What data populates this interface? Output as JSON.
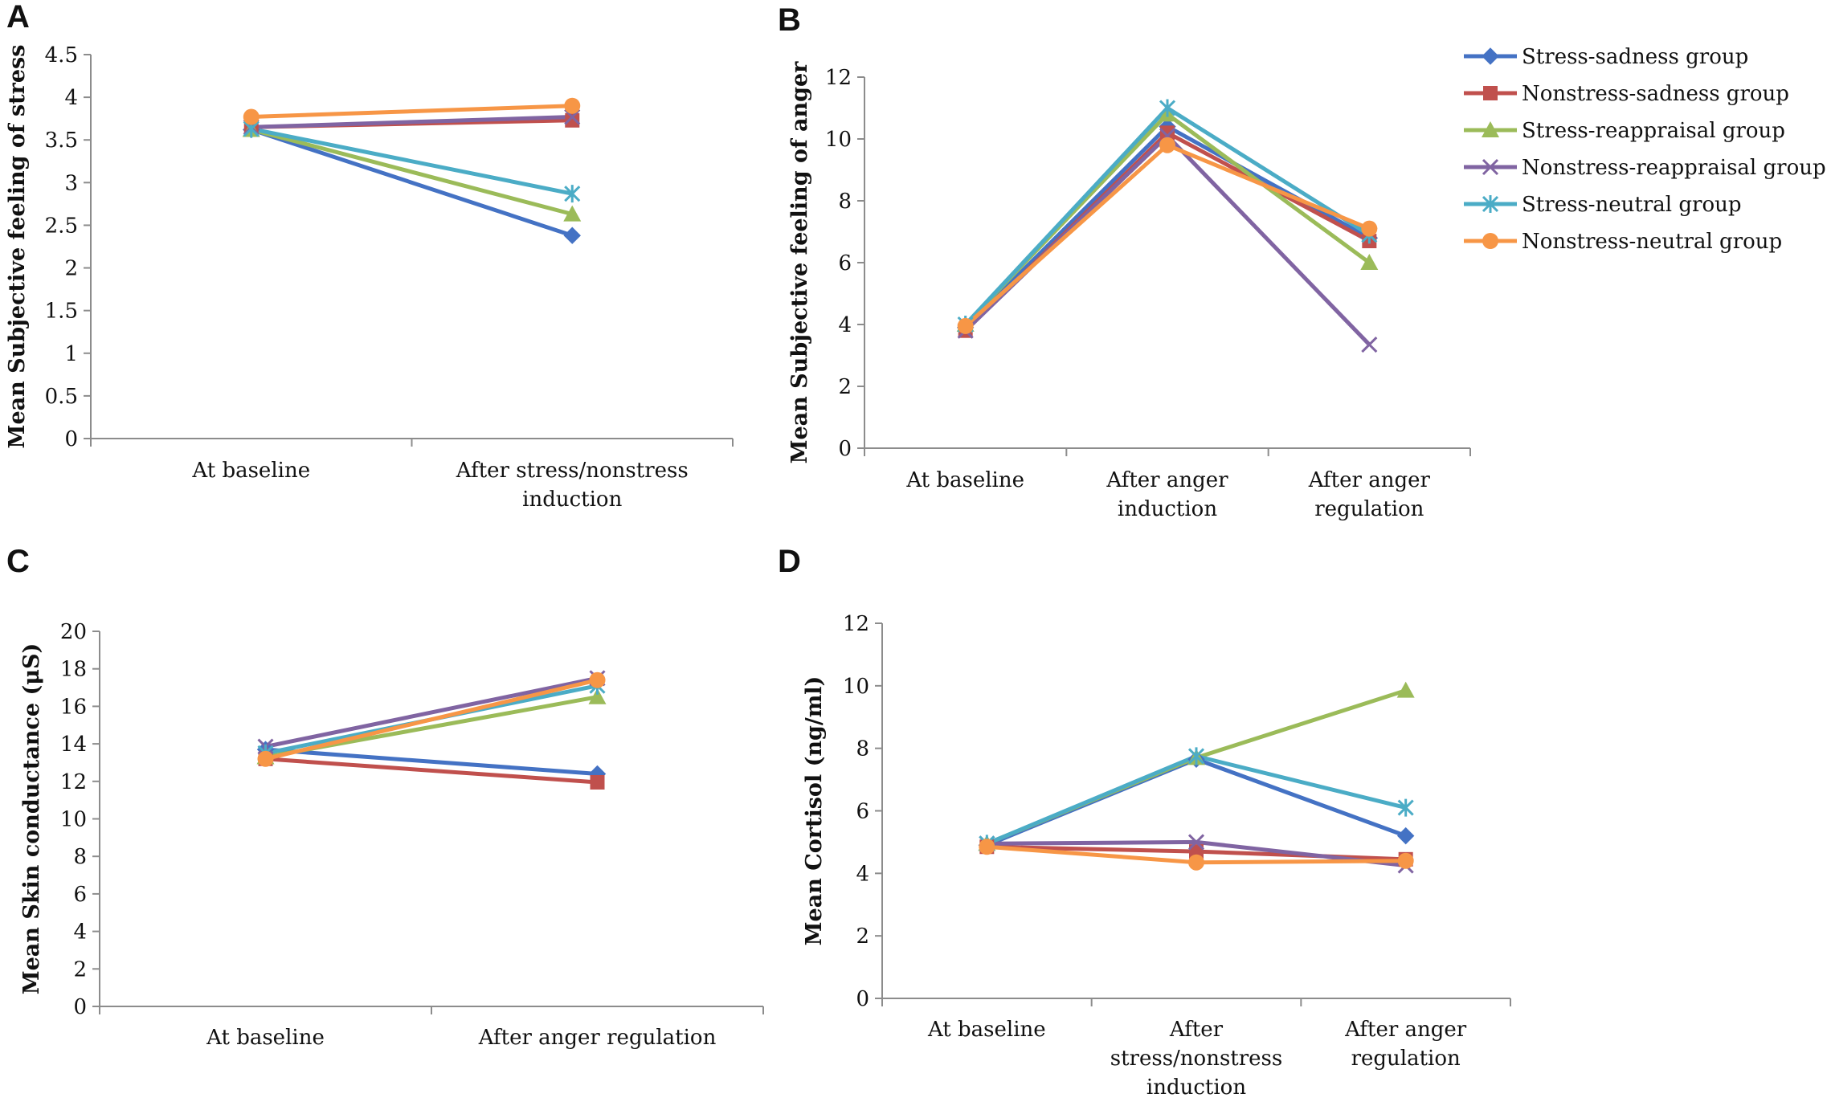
{
  "legend": [
    {
      "name": "Stress-sadness group",
      "color": "#4472C4",
      "marker": "diamond"
    },
    {
      "name": "Nonstress-sadness group",
      "color": "#C0504D",
      "marker": "square"
    },
    {
      "name": "Stress-reappraisal group",
      "color": "#9BBB59",
      "marker": "triangle"
    },
    {
      "name": "Nonstress-reappraisal group",
      "color": "#8064A2",
      "marker": "x"
    },
    {
      "name": "Stress-neutral group",
      "color": "#4BACC6",
      "marker": "star"
    },
    {
      "name": "Nonstress-neutral group",
      "color": "#F79646",
      "marker": "circle"
    }
  ],
  "chart_data": [
    {
      "panel": "A",
      "type": "line",
      "ylabel": "Mean Subjective feeling of stress",
      "ylim": [
        0,
        4.5
      ],
      "yticks": [
        "0",
        "0.5",
        "1",
        "1.5",
        "2",
        "2.5",
        "3",
        "3.5",
        "4",
        "4.5"
      ],
      "categories": [
        [
          "At baseline"
        ],
        [
          "After stress/nonstress",
          "induction"
        ]
      ],
      "series": [
        {
          "name": "Stress-sadness group",
          "values": [
            3.62,
            2.38
          ]
        },
        {
          "name": "Nonstress-sadness group",
          "values": [
            3.65,
            3.73
          ]
        },
        {
          "name": "Stress-reappraisal group",
          "values": [
            3.62,
            2.63
          ]
        },
        {
          "name": "Nonstress-reappraisal group",
          "values": [
            3.65,
            3.77
          ]
        },
        {
          "name": "Stress-neutral group",
          "values": [
            3.63,
            2.87
          ]
        },
        {
          "name": "Nonstress-neutral group",
          "values": [
            3.77,
            3.9
          ]
        }
      ]
    },
    {
      "panel": "B",
      "type": "line",
      "ylabel": "Mean Subjective feeling of anger",
      "ylim": [
        0,
        12
      ],
      "yticks": [
        "0",
        "2",
        "4",
        "6",
        "8",
        "10",
        "12"
      ],
      "categories": [
        [
          "At baseline"
        ],
        [
          "After anger",
          "induction"
        ],
        [
          "After anger",
          "regulation"
        ]
      ],
      "series": [
        {
          "name": "Stress-sadness group",
          "values": [
            3.9,
            10.4,
            6.8
          ]
        },
        {
          "name": "Nonstress-sadness group",
          "values": [
            3.8,
            10.2,
            6.7
          ]
        },
        {
          "name": "Stress-reappraisal group",
          "values": [
            4.0,
            10.8,
            6.0
          ]
        },
        {
          "name": "Nonstress-reappraisal group",
          "values": [
            3.8,
            10.1,
            3.35
          ]
        },
        {
          "name": "Stress-neutral group",
          "values": [
            4.0,
            11.0,
            6.9
          ]
        },
        {
          "name": "Nonstress-neutral group",
          "values": [
            3.95,
            9.8,
            7.1
          ]
        }
      ]
    },
    {
      "panel": "C",
      "type": "line",
      "ylabel": "Mean Skin conductance (μS)",
      "ylim": [
        0,
        20
      ],
      "yticks": [
        "0",
        "2",
        "4",
        "6",
        "8",
        "10",
        "12",
        "14",
        "16",
        "18",
        "20"
      ],
      "categories": [
        [
          "At baseline"
        ],
        [
          "After anger regulation"
        ]
      ],
      "series": [
        {
          "name": "Stress-sadness group",
          "values": [
            13.7,
            12.4
          ]
        },
        {
          "name": "Nonstress-sadness group",
          "values": [
            13.2,
            11.95
          ]
        },
        {
          "name": "Stress-reappraisal group",
          "values": [
            13.3,
            16.5
          ]
        },
        {
          "name": "Nonstress-reappraisal group",
          "values": [
            13.85,
            17.5
          ]
        },
        {
          "name": "Stress-neutral group",
          "values": [
            13.5,
            17.1
          ]
        },
        {
          "name": "Nonstress-neutral group",
          "values": [
            13.2,
            17.4
          ]
        }
      ]
    },
    {
      "panel": "D",
      "type": "line",
      "ylabel": "Mean Cortisol (ng/ml)",
      "ylim": [
        0,
        12
      ],
      "yticks": [
        "0",
        "2",
        "4",
        "6",
        "8",
        "10",
        "12"
      ],
      "categories": [
        [
          "At baseline"
        ],
        [
          "After",
          "stress/nonstress",
          "induction"
        ],
        [
          "After anger",
          "regulation"
        ]
      ],
      "series": [
        {
          "name": "Stress-sadness group",
          "values": [
            4.9,
            7.65,
            5.2
          ]
        },
        {
          "name": "Nonstress-sadness group",
          "values": [
            4.85,
            4.7,
            4.45
          ]
        },
        {
          "name": "Stress-reappraisal group",
          "values": [
            4.95,
            7.7,
            9.85
          ]
        },
        {
          "name": "Nonstress-reappraisal group",
          "values": [
            4.95,
            5.0,
            4.25
          ]
        },
        {
          "name": "Stress-neutral group",
          "values": [
            4.95,
            7.75,
            6.1
          ]
        },
        {
          "name": "Nonstress-neutral group",
          "values": [
            4.85,
            4.35,
            4.4
          ]
        }
      ]
    }
  ]
}
